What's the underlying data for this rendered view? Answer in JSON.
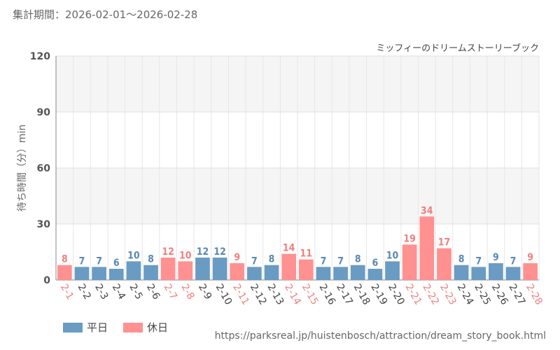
{
  "period": "集計期間：2026-02-01〜2026-02-28",
  "source_url": "https://parksreal.jp/huistenbosch/attraction/dream_story_book.html",
  "colors": {
    "weekday": "#6a9bc3",
    "holiday": "#ff9191",
    "weekday_text": "#5a88b0",
    "holiday_text": "#f07f7f"
  },
  "legend": {
    "weekday": "平日",
    "holiday": "休日"
  },
  "chart_data": {
    "type": "bar",
    "title": "ミッフィーのドリームストーリーブック",
    "xlabel": "",
    "ylabel": "待ち時間（分）min",
    "ylim": [
      0,
      120
    ],
    "yticks": [
      0,
      30,
      60,
      90,
      120
    ],
    "categories": [
      "2-1",
      "2-2",
      "2-3",
      "2-4",
      "2-5",
      "2-6",
      "2-7",
      "2-8",
      "2-9",
      "2-10",
      "2-11",
      "2-12",
      "2-13",
      "2-14",
      "2-15",
      "2-16",
      "2-17",
      "2-18",
      "2-19",
      "2-20",
      "2-21",
      "2-22",
      "2-23",
      "2-24",
      "2-25",
      "2-26",
      "2-27",
      "2-28"
    ],
    "values": [
      8,
      7,
      7,
      6,
      10,
      8,
      12,
      10,
      12,
      12,
      9,
      7,
      8,
      14,
      11,
      7,
      7,
      8,
      6,
      10,
      19,
      34,
      17,
      8,
      7,
      9,
      7,
      9
    ],
    "day_type": [
      "holiday",
      "weekday",
      "weekday",
      "weekday",
      "weekday",
      "weekday",
      "holiday",
      "holiday",
      "weekday",
      "weekday",
      "holiday",
      "weekday",
      "weekday",
      "holiday",
      "holiday",
      "weekday",
      "weekday",
      "weekday",
      "weekday",
      "weekday",
      "holiday",
      "holiday",
      "holiday",
      "weekday",
      "weekday",
      "weekday",
      "weekday",
      "holiday"
    ]
  }
}
